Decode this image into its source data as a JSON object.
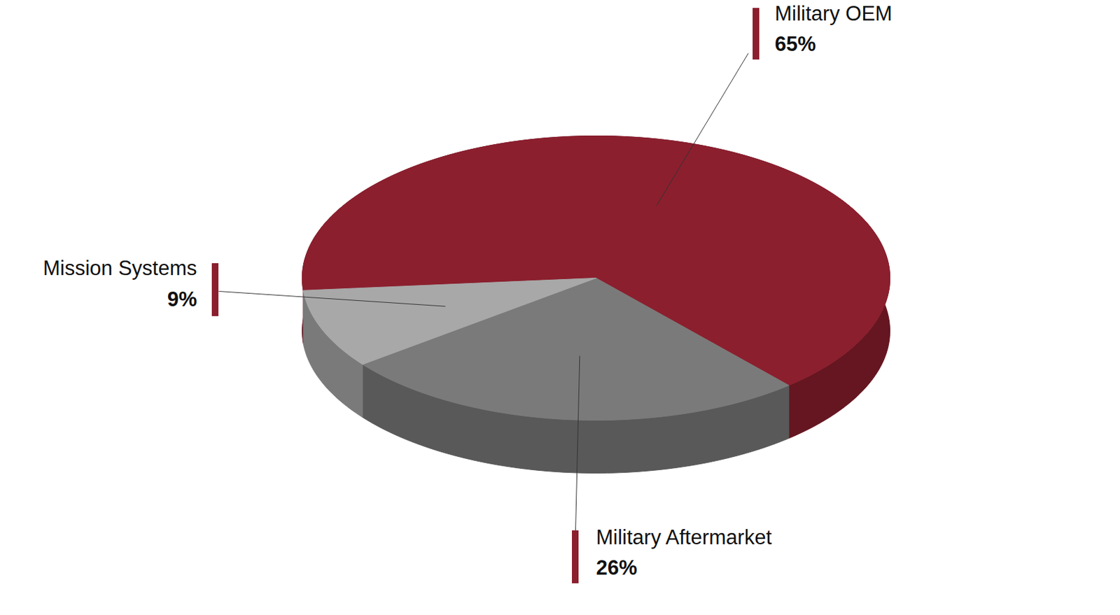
{
  "chart_data": {
    "type": "pie",
    "categories": [
      "Military OEM",
      "Military Aftermarket",
      "Mission Systems"
    ],
    "values": [
      65,
      26,
      9
    ],
    "value_labels": [
      "65%",
      "26%",
      "9%"
    ],
    "colors": [
      "#8b1f2e",
      "#7a7a7a",
      "#a8a8a8"
    ],
    "data_labels": true
  }
}
